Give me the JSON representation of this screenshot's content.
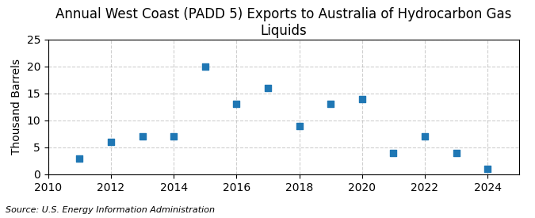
{
  "chart_data": {
    "type": "scatter",
    "title": "Annual West Coast (PADD 5) Exports to Australia of Hydrocarbon Gas Liquids",
    "y_label": "Thousand Barrels",
    "annotations": [
      "Source: U.S. Energy Information Administration"
    ],
    "x": [
      2011,
      2012,
      2013,
      2014,
      2015,
      2016,
      2017,
      2018,
      2019,
      2020,
      2021,
      2022,
      2023,
      2024
    ],
    "values": [
      3,
      6,
      7,
      7,
      20,
      13,
      16,
      9,
      13,
      14,
      4,
      7,
      4,
      1
    ],
    "marker": "s",
    "xlim": [
      2010,
      2025
    ],
    "xticks": [
      2010,
      2012,
      2014,
      2016,
      2018,
      2020,
      2022,
      2024
    ],
    "ylim": [
      0,
      25
    ],
    "yticks": [
      0,
      5,
      10,
      15,
      20,
      25
    ],
    "grid": true
  }
}
